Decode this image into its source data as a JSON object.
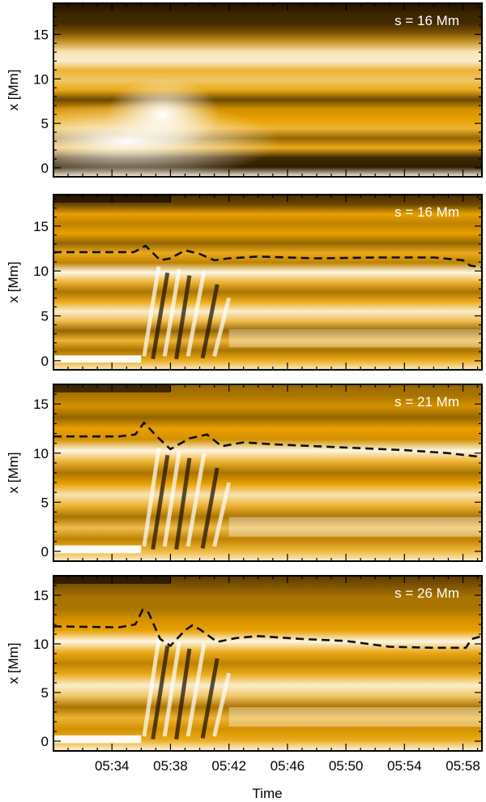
{
  "chart_data": {
    "type": "heatmap",
    "xlabel": "Time",
    "ylabel": "x [Mm]",
    "x_time_range": [
      "05:30",
      "05:59"
    ],
    "x_tick_labels": [
      "05:34",
      "05:38",
      "05:42",
      "05:46",
      "05:50",
      "05:54",
      "05:58"
    ],
    "x_tick_minutes": [
      34,
      38,
      42,
      46,
      50,
      54,
      58
    ],
    "colormap": "yellow-orange (gold)",
    "colors": {
      "dark": "#1a0d00",
      "mid": "#e8a000",
      "light": "#ffffff",
      "dashed_line": "#111111"
    },
    "panels": [
      {
        "label": "s = 16 Mm",
        "ylim": [
          -1,
          18.5
        ],
        "y_ticks": [
          0,
          5,
          10,
          15
        ],
        "dashed_line": null
      },
      {
        "label": "s = 16 Mm",
        "ylim": [
          -1,
          18.5
        ],
        "y_ticks": [
          0,
          5,
          10,
          15
        ],
        "dashed_line": {
          "t": [
            30.0,
            34.0,
            35.5,
            36.3,
            37.3,
            38.0,
            39.0,
            40.0,
            41.0,
            42.0,
            44.0,
            48.0,
            52.0,
            56.0,
            58.0,
            58.5,
            59.3
          ],
          "x": [
            12.1,
            12.1,
            12.1,
            12.8,
            11.2,
            11.4,
            12.3,
            11.9,
            11.2,
            11.4,
            11.6,
            11.4,
            11.5,
            11.5,
            11.2,
            10.6,
            10.4
          ]
        }
      },
      {
        "label": "s = 21 Mm",
        "ylim": [
          -1,
          17
        ],
        "y_ticks": [
          0,
          5,
          10,
          15
        ],
        "dashed_line": {
          "t": [
            30.0,
            34.5,
            35.6,
            36.2,
            37.0,
            38.0,
            39.3,
            40.5,
            41.5,
            43.0,
            45.0,
            48.0,
            51.0,
            54.0,
            57.0,
            59.3
          ],
          "x": [
            11.7,
            11.7,
            11.9,
            13.1,
            11.8,
            10.4,
            11.5,
            11.9,
            10.7,
            11.1,
            10.9,
            10.7,
            10.5,
            10.3,
            10.0,
            9.6
          ]
        }
      },
      {
        "label": "s = 26 Mm",
        "ylim": [
          -1,
          17
        ],
        "y_ticks": [
          0,
          5,
          10,
          15
        ],
        "dashed_line": {
          "t": [
            30.0,
            34.5,
            35.6,
            36.1,
            36.5,
            37.3,
            38.0,
            39.0,
            39.5,
            40.0,
            41.2,
            42.5,
            44.0,
            47.0,
            50.0,
            53.0,
            56.0,
            58.2,
            58.6,
            59.3
          ],
          "x": [
            11.8,
            11.7,
            12.0,
            13.5,
            13.2,
            10.5,
            9.8,
            11.4,
            11.9,
            11.5,
            10.2,
            10.6,
            10.8,
            10.5,
            10.3,
            9.7,
            9.6,
            9.6,
            10.5,
            10.8
          ]
        }
      }
    ]
  }
}
